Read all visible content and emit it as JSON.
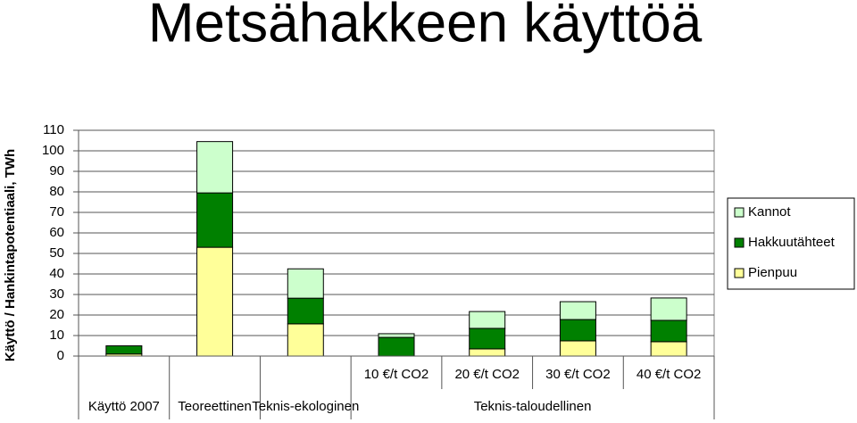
{
  "chart_data": {
    "type": "stacked_bar",
    "title": "Metsähakkeen käyttöä",
    "y_label": "Käyttö / Hankintapotentiaali, TWh",
    "categories": [
      null,
      null,
      null,
      "10 €/t CO2",
      "20 €/t CO2",
      "30 €/t CO2",
      "40 €/t CO2"
    ],
    "groups": [
      {
        "label": "Käyttö 2007",
        "span": 1
      },
      {
        "label": "Teoreettinen",
        "span": 1
      },
      {
        "label": "Teknis-ekologinen",
        "span": 1
      },
      {
        "label": "Teknis-taloudellinen",
        "span": 4
      }
    ],
    "series": [
      {
        "name": "Pienpuu",
        "color": "#ffff99",
        "values": [
          1,
          53,
          15.7,
          0,
          3.5,
          7.4,
          7
        ]
      },
      {
        "name": "Hakkuutähteet",
        "color": "#008000",
        "values": [
          4,
          26.5,
          12.5,
          9.1,
          10,
          10.4,
          10.4
        ]
      },
      {
        "name": "Kannot",
        "color": "#ccffcc",
        "values": [
          0,
          25,
          14.3,
          1.8,
          8.2,
          8.7,
          10.9
        ]
      }
    ],
    "ylim": [
      0,
      110
    ],
    "yticks": [
      0,
      10,
      20,
      30,
      40,
      50,
      60,
      70,
      80,
      90,
      100,
      110
    ],
    "grid": true,
    "legend": "right"
  }
}
